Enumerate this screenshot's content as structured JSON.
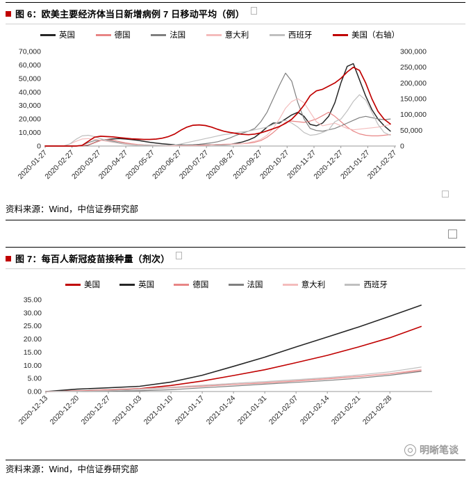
{
  "fig6": {
    "title": "图 6：欧美主要经济体当日新增病例 7 日移动平均（例）",
    "source": "资料来源：Wind，中信证券研究部"
  },
  "fig7": {
    "title": "图 7：每百人新冠疫苗接种量（剂次）",
    "source": "资料来源：Wind，中信证券研究部"
  },
  "watermark": {
    "text": "明晰笔谈"
  },
  "colors": {
    "accent_red": "#c00000",
    "uk_black": "#262626",
    "germany_pink": "#e88585",
    "france_gray": "#7f7f7f",
    "italy_lightpink": "#f4bcbc",
    "spain_lightgray": "#bfbfbf"
  },
  "chart_data": [
    {
      "type": "line",
      "title": "欧美主要经济体当日新增病例 7 日移动平均（例）",
      "legend_position": "top",
      "grid": "off",
      "xlabel": "",
      "ylabel": "",
      "x": {
        "min": 0,
        "max": 13.05,
        "tick_positions": [
          0,
          1,
          2,
          3,
          4,
          5,
          6,
          7,
          8,
          9,
          10,
          11,
          12,
          13
        ],
        "tick_labels": [
          "2020-01-27",
          "2020-02-27",
          "2020-03-27",
          "2020-04-27",
          "2020-05-27",
          "2020-06-27",
          "2020-07-27",
          "2020-08-27",
          "2020-09-27",
          "2020-10-27",
          "2020-11-27",
          "2020-12-27",
          "2021-01-27",
          "2021-02-27"
        ]
      },
      "y_left": {
        "min": 0,
        "max": 70000,
        "ticks": [
          0,
          10000,
          20000,
          30000,
          40000,
          50000,
          60000,
          70000
        ],
        "tick_labels": [
          "0",
          "10,000",
          "20,000",
          "30,000",
          "40,000",
          "50,000",
          "60,000",
          "70,000"
        ]
      },
      "y_right": {
        "min": 0,
        "max": 300000,
        "ticks": [
          0,
          50000,
          100000,
          150000,
          200000,
          250000,
          300000
        ],
        "tick_labels": [
          "0",
          "50,000",
          "100,000",
          "150,000",
          "200,000",
          "250,000",
          "300,000"
        ]
      },
      "data_x_max": 12.84,
      "series": [
        {
          "name": "英国",
          "color": "#262626",
          "axis": "left",
          "width": 1.5,
          "values": [
            0,
            0,
            0,
            0,
            10,
            50,
            200,
            700,
            2500,
            4200,
            4800,
            5300,
            5500,
            5200,
            4800,
            4200,
            3500,
            2800,
            2200,
            1700,
            1300,
            1000,
            800,
            650,
            600,
            650,
            750,
            900,
            1000,
            1100,
            1300,
            2000,
            3000,
            4500,
            6500,
            10000,
            14000,
            17000,
            17000,
            20000,
            23000,
            25000,
            22000,
            16000,
            15000,
            17000,
            22000,
            32000,
            47000,
            59000,
            61000,
            49000,
            37000,
            27000,
            20000,
            15000,
            11000
          ]
        },
        {
          "name": "德国",
          "color": "#e88585",
          "axis": "left",
          "width": 1.2,
          "values": [
            0,
            0,
            0,
            0,
            0,
            30,
            150,
            900,
            2500,
            4000,
            4800,
            4300,
            3300,
            2400,
            1700,
            1200,
            800,
            600,
            500,
            450,
            400,
            450,
            500,
            450,
            400,
            500,
            700,
            900,
            1100,
            1300,
            1400,
            1500,
            1700,
            2100,
            2800,
            4000,
            6500,
            10000,
            14000,
            17500,
            18500,
            18000,
            17500,
            18500,
            20000,
            22500,
            25000,
            22000,
            18000,
            14000,
            11000,
            9000,
            8000,
            7500,
            7500,
            8000,
            8500
          ]
        },
        {
          "name": "法国",
          "color": "#7f7f7f",
          "axis": "left",
          "width": 1.2,
          "values": [
            0,
            0,
            0,
            0,
            20,
            100,
            600,
            2500,
            4000,
            4500,
            4300,
            3500,
            2500,
            1800,
            1200,
            900,
            700,
            550,
            450,
            400,
            450,
            550,
            650,
            800,
            1000,
            1300,
            1800,
            2400,
            3200,
            4500,
            6000,
            8000,
            9500,
            11000,
            13000,
            18000,
            25000,
            35000,
            45000,
            54000,
            48000,
            32000,
            20000,
            13000,
            11500,
            11000,
            12000,
            13000,
            15000,
            17000,
            19000,
            21000,
            22000,
            21000,
            20000,
            19500,
            20000
          ]
        },
        {
          "name": "意大利",
          "color": "#f4bcbc",
          "axis": "left",
          "width": 1.2,
          "values": [
            0,
            5,
            30,
            200,
            1500,
            3500,
            5200,
            5500,
            5000,
            4300,
            3500,
            2800,
            2200,
            1700,
            1200,
            900,
            600,
            400,
            300,
            250,
            200,
            200,
            250,
            250,
            250,
            300,
            400,
            900,
            1200,
            1400,
            1500,
            1600,
            1800,
            2500,
            3500,
            5000,
            8000,
            13000,
            20000,
            28000,
            33000,
            35000,
            32000,
            25000,
            18000,
            15000,
            16000,
            17000,
            15000,
            13000,
            12000,
            12500,
            13000,
            13500,
            14000,
            15000,
            16000
          ]
        },
        {
          "name": "西班牙",
          "color": "#bfbfbf",
          "axis": "left",
          "width": 1.2,
          "values": [
            0,
            0,
            10,
            100,
            1500,
            5000,
            7500,
            8000,
            7000,
            5500,
            4000,
            3000,
            2000,
            1300,
            800,
            500,
            400,
            350,
            300,
            400,
            500,
            800,
            1500,
            2500,
            3500,
            4500,
            5500,
            6500,
            7500,
            8500,
            9000,
            10000,
            10500,
            11000,
            12000,
            13000,
            14000,
            16000,
            18000,
            19000,
            17000,
            14000,
            10000,
            8000,
            8500,
            10000,
            12000,
            18000,
            20000,
            26000,
            33000,
            38000,
            34000,
            25000,
            16000,
            10000,
            8000
          ]
        },
        {
          "name": "美国（右轴）",
          "color": "#c00000",
          "axis": "right",
          "width": 1.7,
          "values": [
            0,
            0,
            0,
            0,
            10,
            100,
            2000,
            15000,
            28000,
            31000,
            30000,
            29000,
            27000,
            25000,
            23000,
            22000,
            21000,
            21000,
            22000,
            25000,
            30000,
            38000,
            50000,
            60000,
            66000,
            67000,
            65000,
            60000,
            53000,
            47000,
            43000,
            40000,
            37000,
            36000,
            38000,
            42000,
            48000,
            55000,
            62000,
            72000,
            85000,
            105000,
            130000,
            160000,
            175000,
            180000,
            190000,
            200000,
            215000,
            235000,
            250000,
            240000,
            200000,
            150000,
            110000,
            85000,
            70000
          ]
        }
      ]
    },
    {
      "type": "line",
      "title": "每百人新冠疫苗接种量（剂次）",
      "legend_position": "top",
      "grid": "off",
      "xlabel": "",
      "ylabel": "",
      "x": {
        "min": 0,
        "max": 12.35,
        "tick_positions": [
          0,
          1,
          2,
          3,
          4,
          5,
          6,
          7,
          8,
          9,
          10,
          11
        ],
        "tick_labels": [
          "2020-12-13",
          "2020-12-20",
          "2020-12-27",
          "2021-01-03",
          "2021-01-10",
          "2021-01-17",
          "2021-01-24",
          "2021-01-31",
          "2021-02-07",
          "2021-02-14",
          "2021-02-21",
          "2021-02-28"
        ]
      },
      "y_left": {
        "min": 0,
        "max": 35,
        "ticks": [
          0,
          5,
          10,
          15,
          20,
          25,
          30,
          35
        ],
        "tick_labels": [
          "0.00",
          "5.00",
          "10.00",
          "15.00",
          "20.00",
          "25.00",
          "30.00",
          "35.00"
        ]
      },
      "data_x_max": 12.0,
      "series": [
        {
          "name": "美国",
          "color": "#c00000",
          "axis": "left",
          "width": 1.6,
          "values": [
            0,
            0.2,
            0.5,
            1.1,
            2.3,
            4.0,
            6.1,
            8.3,
            11.0,
            13.8,
            17.0,
            20.5,
            24.8
          ]
        },
        {
          "name": "英国",
          "color": "#262626",
          "axis": "left",
          "width": 1.6,
          "values": [
            0,
            0.9,
            1.4,
            2.0,
            3.6,
            6.2,
            9.6,
            13.1,
            17.0,
            20.8,
            24.6,
            28.7,
            32.9
          ]
        },
        {
          "name": "德国",
          "color": "#e88585",
          "axis": "left",
          "width": 1.2,
          "values": [
            0,
            0.2,
            0.4,
            0.8,
            1.4,
            2.0,
            2.7,
            3.3,
            4.0,
            4.8,
            5.7,
            6.7,
            8.0
          ]
        },
        {
          "name": "法国",
          "color": "#7f7f7f",
          "axis": "left",
          "width": 1.2,
          "values": [
            0,
            0.0,
            0.1,
            0.3,
            0.7,
            1.4,
            2.1,
            2.8,
            3.5,
            4.2,
            5.1,
            6.2,
            7.7
          ]
        },
        {
          "name": "意大利",
          "color": "#f4bcbc",
          "axis": "left",
          "width": 1.2,
          "values": [
            0,
            0.1,
            0.4,
            1.0,
            1.7,
            2.4,
            3.1,
            3.7,
            4.4,
            5.1,
            5.9,
            6.9,
            8.4
          ]
        },
        {
          "name": "西班牙",
          "color": "#bfbfbf",
          "axis": "left",
          "width": 1.2,
          "values": [
            0,
            0.1,
            0.3,
            0.8,
            1.5,
            2.3,
            3.1,
            3.8,
            4.5,
            5.3,
            6.3,
            7.5,
            9.3
          ]
        }
      ]
    }
  ]
}
